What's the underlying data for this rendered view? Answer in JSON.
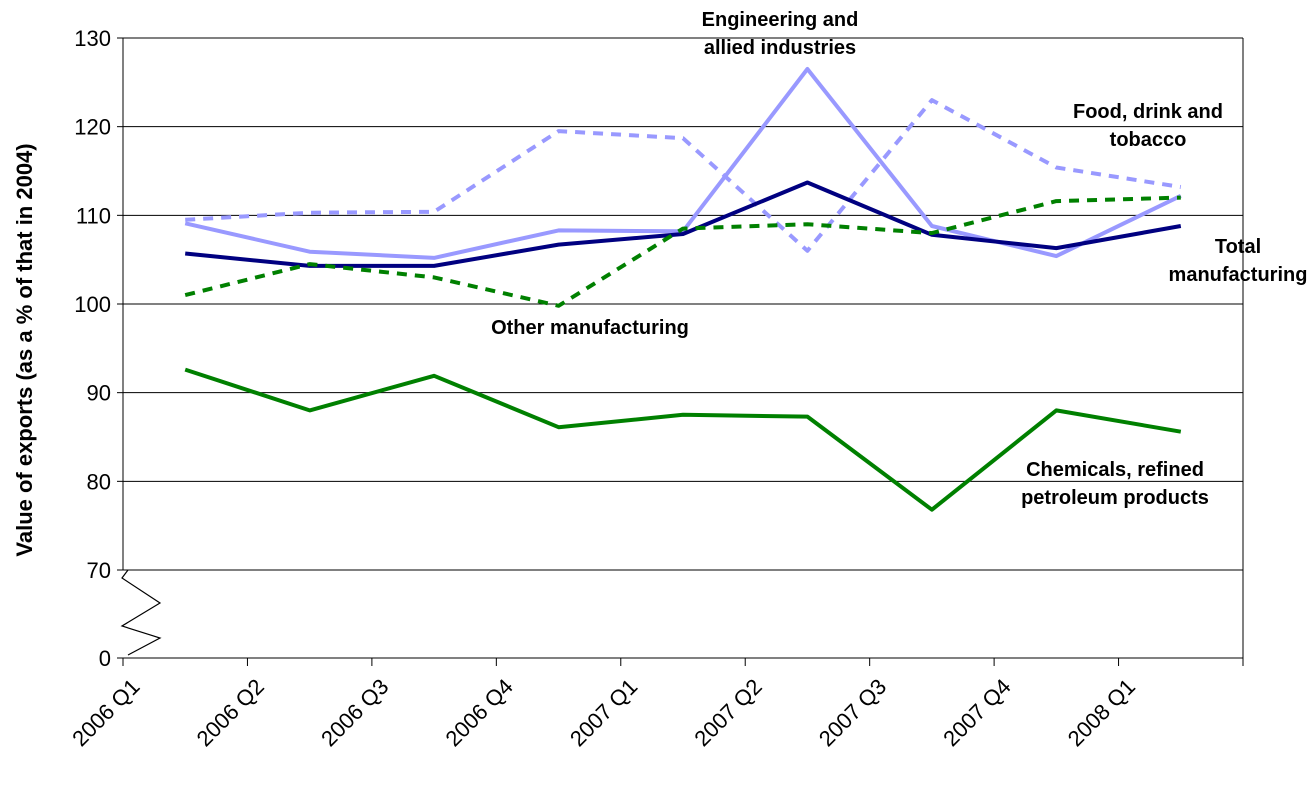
{
  "chart_data": {
    "type": "line",
    "categories": [
      "2006 Q1",
      "2006 Q2",
      "2006 Q3",
      "2006 Q4",
      "2007 Q1",
      "2007 Q2",
      "2007 Q3",
      "2007 Q4",
      "2008 Q1"
    ],
    "ylabel": "Value of exports (as a % of that in 2004)",
    "xlabel": "",
    "y_ticks": [
      "0",
      "70",
      "80",
      "90",
      "100",
      "110",
      "120",
      "130"
    ],
    "ylim": [
      70,
      130
    ],
    "axis_break": "between 0 and 70",
    "grid": "horizontal",
    "legend": "none (direct labels)",
    "series": [
      {
        "name": "Food, drink and tobacco",
        "label_lines": [
          "Food, drink and",
          "tobacco"
        ],
        "color": "#9999ff",
        "style": "dashed",
        "values": [
          109.5,
          110.3,
          110.4,
          119.5,
          118.7,
          106.0,
          123.0,
          115.4,
          113.2
        ]
      },
      {
        "name": "Engineering and allied industries",
        "label_lines": [
          "Engineering and",
          "allied industries"
        ],
        "color": "#9999ff",
        "style": "solid",
        "values": [
          109.1,
          105.9,
          105.2,
          108.3,
          108.2,
          126.5,
          108.8,
          105.4,
          112.2
        ]
      },
      {
        "name": "Total manufacturing",
        "label_lines": [
          "Total",
          "manufacturing"
        ],
        "color": "#000080",
        "style": "solid",
        "values": [
          105.7,
          104.3,
          104.3,
          106.7,
          107.9,
          113.7,
          107.8,
          106.3,
          108.8
        ]
      },
      {
        "name": "Other manufacturing",
        "label_lines": [
          "Other manufacturing"
        ],
        "color": "#008000",
        "style": "dashed",
        "values": [
          101.0,
          104.5,
          103.0,
          99.8,
          108.5,
          109.0,
          108.0,
          111.6,
          112.0
        ]
      },
      {
        "name": "Chemicals, refined petroleum products",
        "label_lines": [
          "Chemicals, refined",
          "petroleum products"
        ],
        "color": "#008000",
        "style": "solid",
        "values": [
          92.6,
          88.0,
          91.9,
          86.1,
          87.5,
          87.3,
          76.8,
          88.0,
          85.6
        ]
      }
    ]
  }
}
